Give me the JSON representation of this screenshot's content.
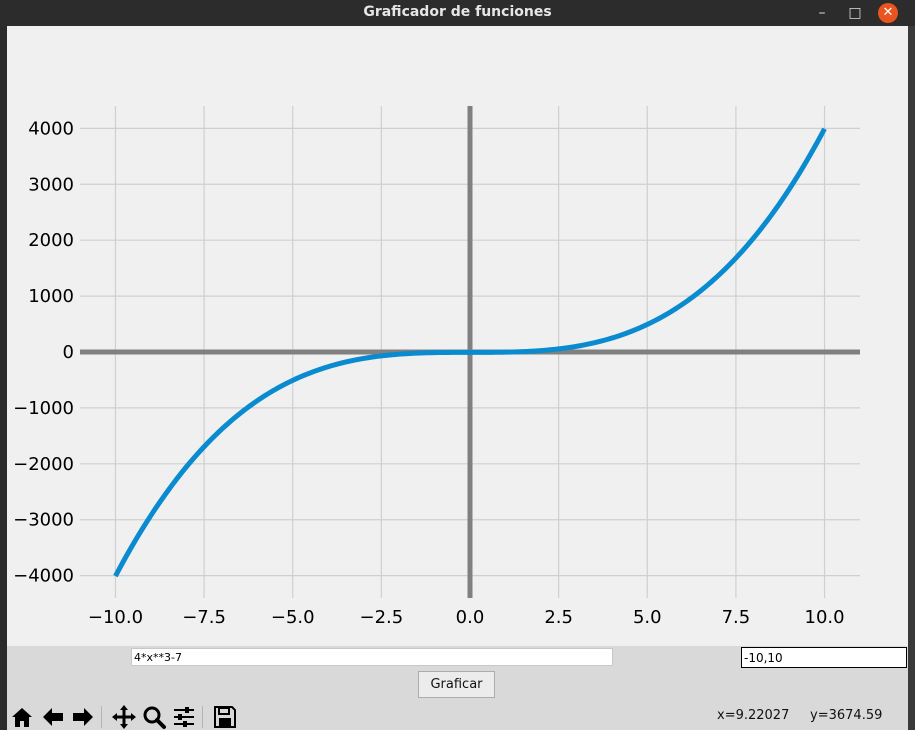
{
  "window": {
    "title": "Graficador de funciones",
    "controls": {
      "minimize": "–",
      "maximize": "□",
      "close": "✕"
    }
  },
  "inputs": {
    "expression": "4*x**3-7",
    "range": "-10,10"
  },
  "buttons": {
    "plot": "Graficar"
  },
  "toolbar": {
    "icons": [
      "home-icon",
      "back-arrow-icon",
      "forward-arrow-icon",
      "pan-icon",
      "zoom-icon",
      "configure-subplots-icon",
      "save-icon"
    ]
  },
  "status": {
    "x_readout": "x=9.22027",
    "y_readout": "y=3674.59"
  },
  "colors": {
    "curve": "#0a8bd0",
    "axes": "#808080",
    "grid": "#cfcfcf",
    "figure_bg": "#f0f0f0"
  },
  "chart_data": {
    "type": "line",
    "title": "",
    "xlabel": "",
    "ylabel": "",
    "function": "4*x**3-7",
    "xlim": [
      -11,
      11
    ],
    "ylim": [
      -4400,
      4400
    ],
    "x_domain": [
      -10,
      10
    ],
    "grid": true,
    "x_ticks": [
      -10,
      -7.5,
      -5,
      -2.5,
      0,
      2.5,
      5,
      7.5,
      10
    ],
    "x_tick_labels": [
      "−10.0",
      "−7.5",
      "−5.0",
      "−2.5",
      "0.0",
      "2.5",
      "5.0",
      "7.5",
      "10.0"
    ],
    "y_ticks": [
      4000,
      3000,
      2000,
      1000,
      0,
      -1000,
      -2000,
      -3000,
      -4000
    ],
    "y_tick_labels": [
      "4000",
      "3000",
      "2000",
      "1000",
      "0",
      "−1000",
      "−2000",
      "−3000",
      "−4000"
    ],
    "series": [
      {
        "name": "4*x**3-7",
        "x": [
          -10,
          -9,
          -8,
          -7,
          -6,
          -5,
          -4,
          -3,
          -2,
          -1,
          0,
          1,
          2,
          3,
          4,
          5,
          6,
          7,
          8,
          9,
          10
        ],
        "y": [
          -4007,
          -2923,
          -2055,
          -1379,
          -871,
          -507,
          -263,
          -115,
          -39,
          -11,
          -7,
          -3,
          25,
          101,
          249,
          493,
          857,
          1365,
          2041,
          2909,
          3993
        ]
      }
    ]
  }
}
